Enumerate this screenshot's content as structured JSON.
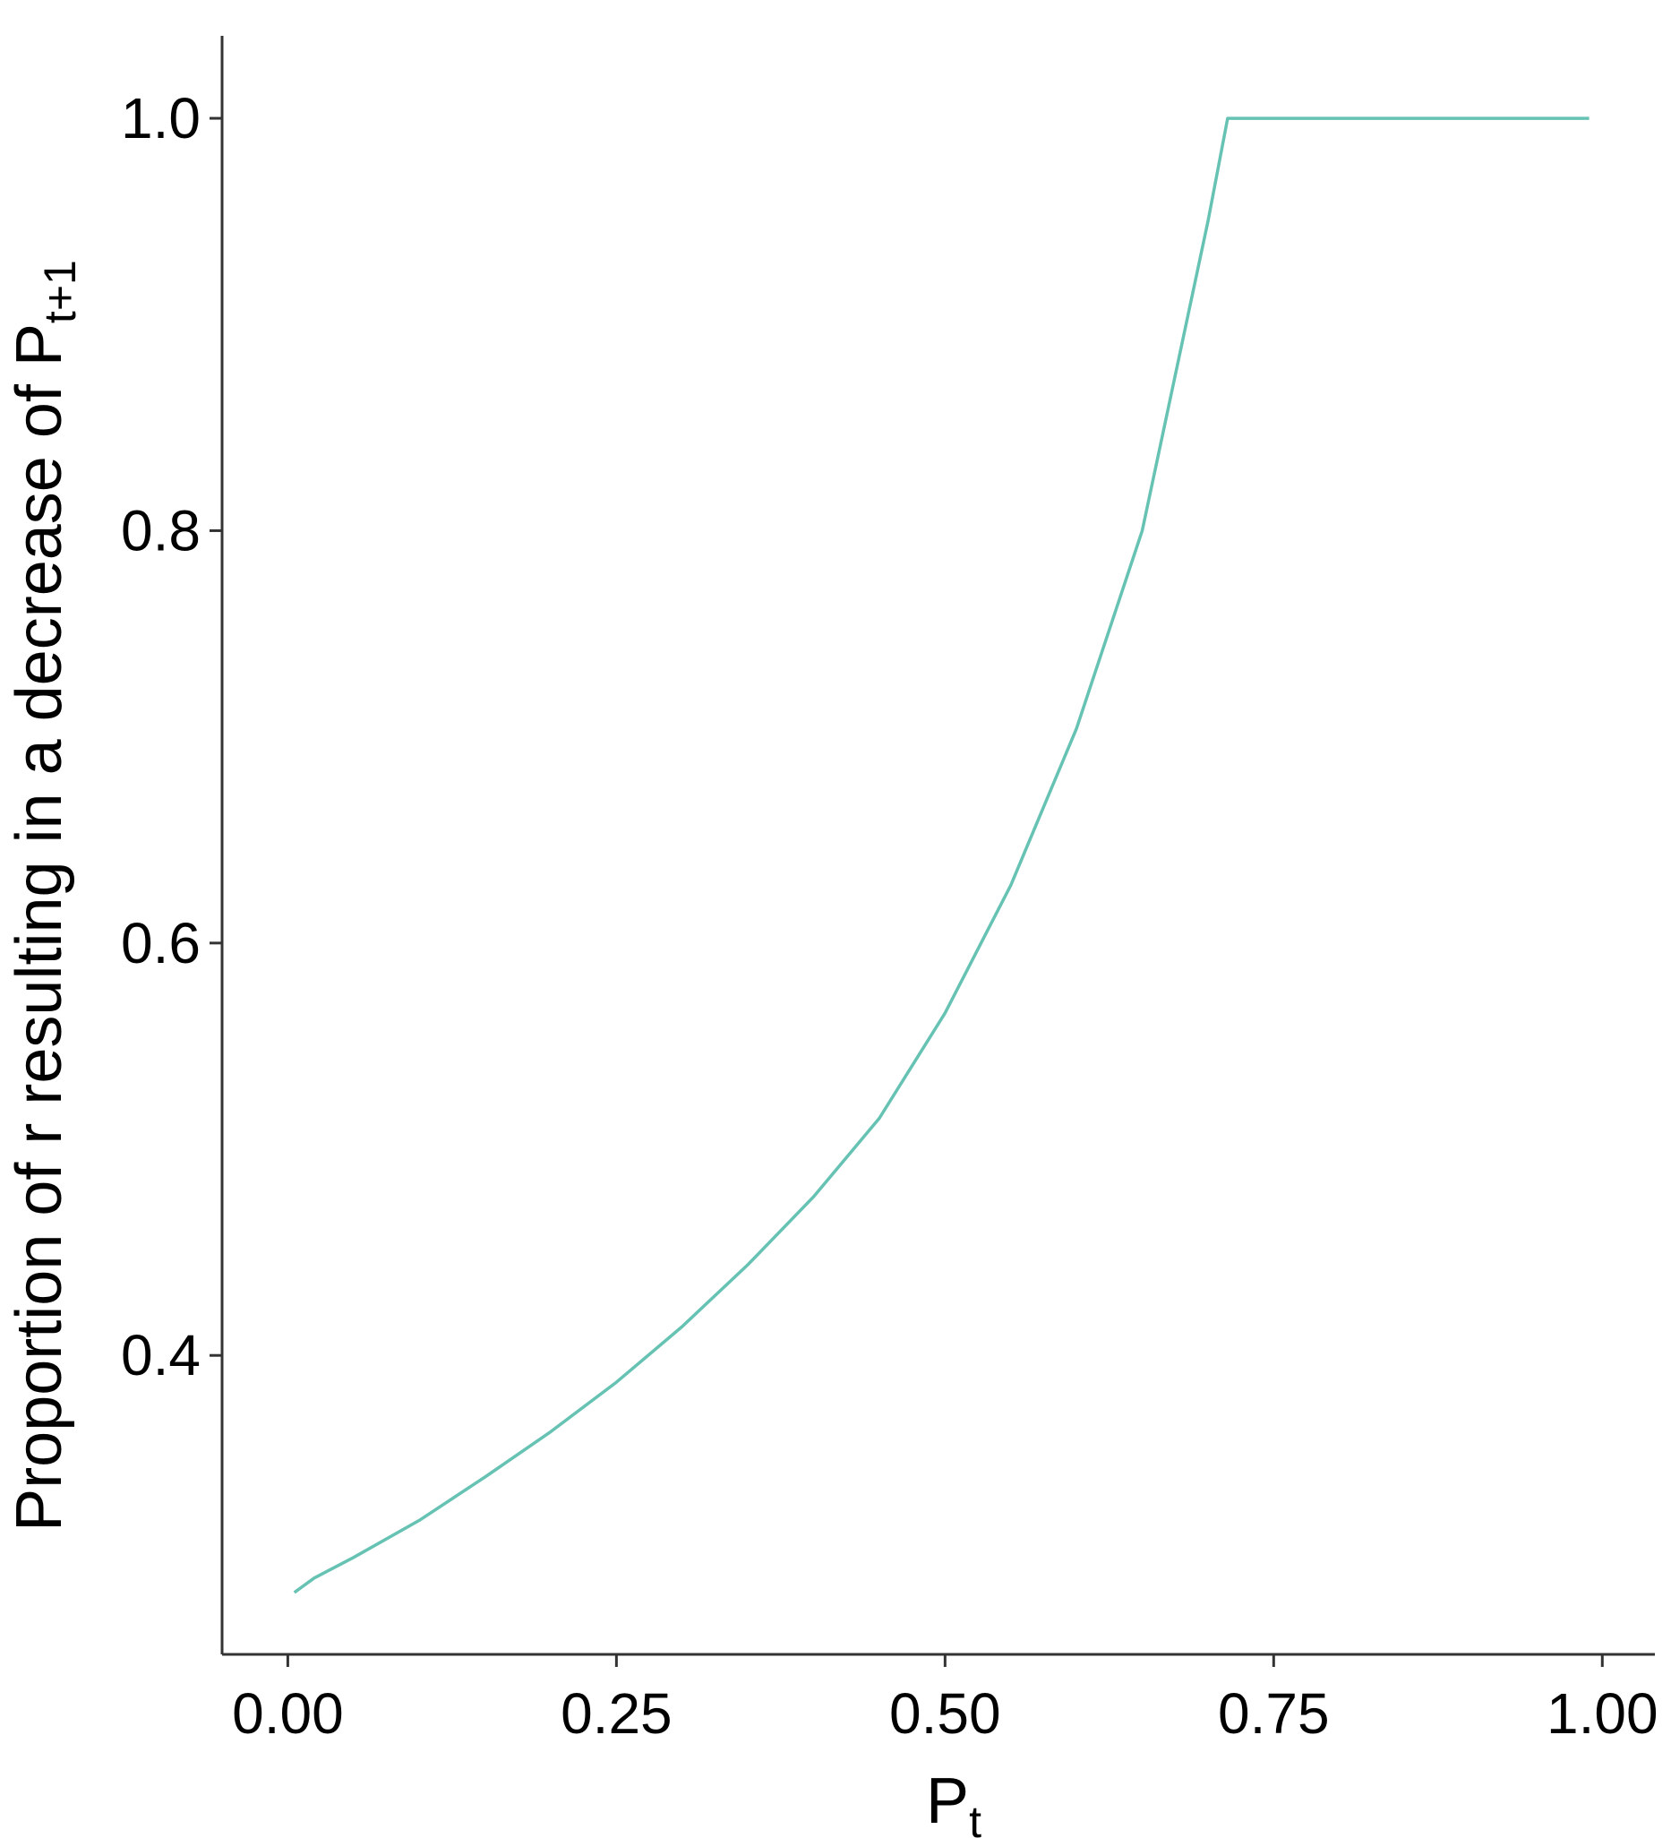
{
  "chart_data": {
    "type": "line",
    "title": "",
    "xlabel": {
      "base": "P",
      "subscript": "t"
    },
    "ylabel": {
      "text": "Proportion of r resulting in a decrease of ",
      "base": "P",
      "subscript": "t+1"
    },
    "xlim": [
      -0.05,
      1.04
    ],
    "ylim": [
      0.255,
      1.04
    ],
    "x_ticks": [
      0.0,
      0.25,
      0.5,
      0.75,
      1.0
    ],
    "x_tick_labels": [
      "0.00",
      "0.25",
      "0.50",
      "0.75",
      "1.00"
    ],
    "y_ticks": [
      0.4,
      0.6,
      0.8,
      1.0
    ],
    "y_tick_labels": [
      "0.4",
      "0.6",
      "0.8",
      "1.0"
    ],
    "grid": false,
    "legend": "none",
    "colors": {
      "line": "#66c2b3",
      "axis": "#333333"
    },
    "series": [
      {
        "x": [
          0.005,
          0.02,
          0.05,
          0.1,
          0.15,
          0.2,
          0.25,
          0.3,
          0.35,
          0.4,
          0.45,
          0.5,
          0.55,
          0.6,
          0.65,
          0.7,
          0.715,
          0.75,
          0.8,
          0.85,
          0.9,
          0.95,
          0.99
        ],
        "y": [
          0.285,
          0.292,
          0.302,
          0.32,
          0.341,
          0.363,
          0.387,
          0.414,
          0.444,
          0.477,
          0.515,
          0.566,
          0.628,
          0.704,
          0.8,
          0.95,
          1.0,
          1.0,
          1.0,
          1.0,
          1.0,
          1.0,
          1.0
        ]
      }
    ]
  }
}
